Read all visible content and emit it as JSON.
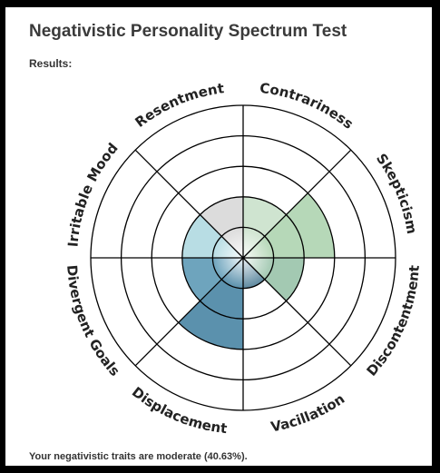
{
  "page": {
    "title": "Negativistic Personality Spectrum Test",
    "results_label": "Results:",
    "summary": "Your negativistic traits are moderate (40.63%)."
  },
  "chart_data": {
    "type": "polar-area",
    "rings": 5,
    "max": 100,
    "categories": [
      "Contrariness",
      "Skepticism",
      "Discontentment",
      "Vacillation",
      "Displacement",
      "Divergent Goals",
      "Irritable Mood",
      "Resentment"
    ],
    "values": [
      40,
      60,
      40,
      20,
      60,
      40,
      40,
      40
    ],
    "colors": [
      "#cfe4d0",
      "#b6d8b8",
      "#a3c9b2",
      "#5f8aa0",
      "#5b91ad",
      "#6ea4bd",
      "#b8dde4",
      "#dcdcdc"
    ]
  }
}
